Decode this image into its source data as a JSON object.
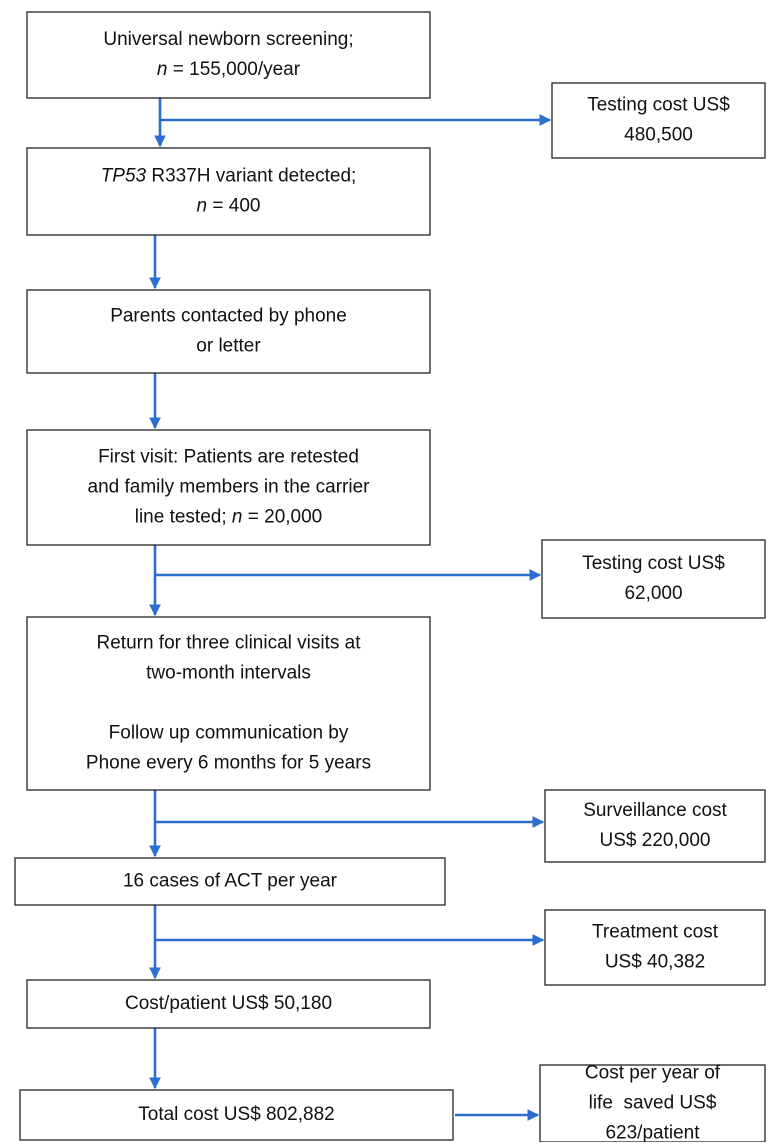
{
  "main_flow": [
    {
      "paragraphs": [
        [
          "Universal newborn screening;",
          [
            {
              "text": "n",
              "italic": true
            },
            {
              "text": " = 155,000/year"
            }
          ]
        ]
      ]
    },
    {
      "paragraphs": [
        [
          [
            {
              "text": "TP53",
              "italic": true
            },
            {
              "text": " R337H variant detected;"
            }
          ],
          [
            {
              "text": "n",
              "italic": true
            },
            {
              "text": " = 400"
            }
          ]
        ]
      ]
    },
    {
      "paragraphs": [
        [
          "Parents contacted by phone",
          "or letter"
        ]
      ]
    },
    {
      "paragraphs": [
        [
          "First visit: Patients are retested",
          "and family members in the carrier",
          [
            {
              "text": "line tested; "
            },
            {
              "text": "n",
              "italic": true
            },
            {
              "text": " = 20,000"
            }
          ]
        ]
      ]
    },
    {
      "paragraphs": [
        [
          "Return for three clinical visits at",
          "two-month intervals"
        ],
        [
          "Follow up communication by",
          "Phone every 6 months for 5 years"
        ]
      ]
    },
    {
      "paragraphs": [
        [
          "16 cases of ACT per year"
        ]
      ]
    },
    {
      "paragraphs": [
        [
          "Cost/patient US$ 50,180"
        ]
      ]
    },
    {
      "paragraphs": [
        [
          "Total cost US$ 802,882"
        ]
      ]
    }
  ],
  "side_boxes": [
    {
      "paragraphs": [
        [
          "Testing cost US$",
          "480,500"
        ]
      ]
    },
    {
      "paragraphs": [
        [
          "Testing cost US$",
          "62,000"
        ]
      ]
    },
    {
      "paragraphs": [
        [
          "Surveillance cost",
          "US$ 220,000"
        ]
      ]
    },
    {
      "paragraphs": [
        [
          "Treatment cost",
          "US$ 40,382"
        ]
      ]
    },
    {
      "paragraphs": [
        [
          "Cost per year of",
          "life  saved US$",
          "623/patient"
        ]
      ]
    }
  ]
}
